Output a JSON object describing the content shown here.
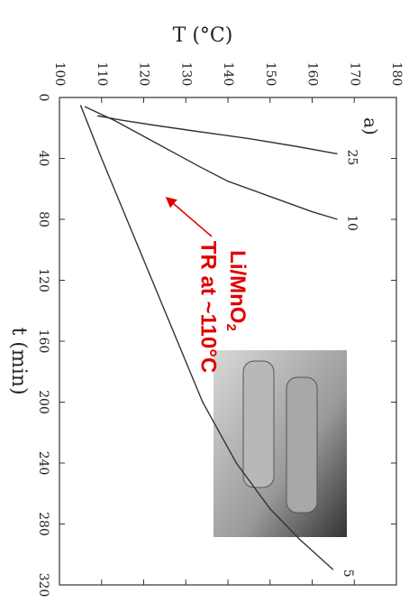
{
  "chart_data": {
    "type": "line",
    "title": "a)",
    "x_label": "t (min)",
    "y_label": "T (°C)",
    "xlim": [
      0,
      320
    ],
    "xticks": [
      0,
      40,
      80,
      120,
      160,
      200,
      240,
      280,
      320
    ],
    "ylim": [
      100,
      180
    ],
    "yticks": [
      100,
      110,
      120,
      130,
      140,
      150,
      160,
      170,
      180
    ],
    "color": "#333333",
    "series": [
      {
        "name": "25",
        "x": [
          12,
          15,
          18,
          22,
          27,
          32,
          37
        ],
        "values": [
          109,
          115,
          122,
          132,
          145,
          156,
          166
        ]
      },
      {
        "name": "10",
        "x": [
          6,
          15,
          30,
          45,
          55,
          65,
          75,
          80
        ],
        "values": [
          106,
          113,
          123,
          133,
          140,
          150,
          160,
          166
        ]
      },
      {
        "name": "5",
        "x": [
          5,
          40,
          80,
          120,
          160,
          200,
          240,
          270,
          290,
          310
        ],
        "values": [
          105,
          110,
          116,
          122,
          128,
          134,
          142,
          150,
          157,
          165
        ]
      }
    ],
    "annotation": {
      "line1": "Li/MnO",
      "subscript": "2",
      "line2": "TR at ~110°C"
    }
  }
}
